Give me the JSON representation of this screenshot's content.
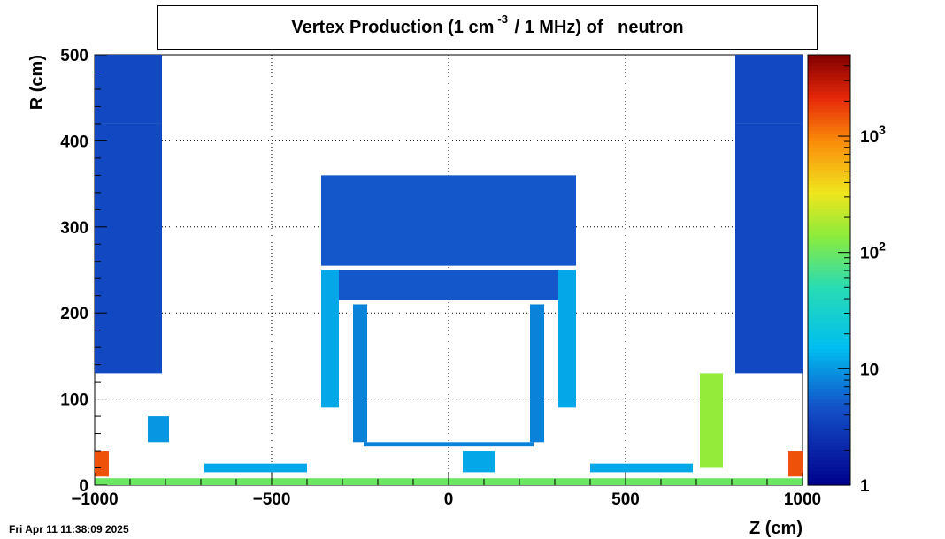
{
  "chart_data": {
    "type": "heatmap",
    "title_pre": "Vertex Production (1 cm",
    "title_sup": "-3",
    "title_post": " / 1 MHz) of   neutron",
    "xlabel": "Z (cm)",
    "ylabel": "R (cm)",
    "xlim": [
      -1000,
      1000
    ],
    "ylim": [
      0,
      500
    ],
    "x_ticks": [
      -1000,
      -500,
      0,
      500,
      1000
    ],
    "x_tick_labels": [
      "−1000",
      "−500",
      "0",
      "500",
      "1000"
    ],
    "y_ticks": [
      0,
      100,
      200,
      300,
      400,
      500
    ],
    "y_tick_labels": [
      "0",
      "100",
      "200",
      "300",
      "400",
      "500"
    ],
    "grid": true,
    "colorbar": {
      "scale": "log",
      "range": [
        1,
        5000
      ],
      "ticks": [
        1,
        10,
        100,
        1000
      ],
      "tick_base": [
        "1",
        "10",
        "10",
        "10"
      ],
      "tick_exp": [
        "",
        "",
        "2",
        "3"
      ]
    },
    "colors": {
      "low": "#1a3cb0",
      "mid": "#16c3e6",
      "high": "#e5e020",
      "max": "#8b0000"
    },
    "regions": [
      {
        "z": [
          -1000,
          -810
        ],
        "r": [
          130,
          420
        ],
        "level": 4
      },
      {
        "z": [
          -1000,
          -810
        ],
        "r": [
          420,
          500
        ],
        "level": 4
      },
      {
        "z": [
          810,
          1000
        ],
        "r": [
          130,
          420
        ],
        "level": 4
      },
      {
        "z": [
          810,
          1000
        ],
        "r": [
          420,
          500
        ],
        "level": 4
      },
      {
        "z": [
          -360,
          360
        ],
        "r": [
          255,
          360
        ],
        "level": 5
      },
      {
        "z": [
          -310,
          310
        ],
        "r": [
          215,
          250
        ],
        "level": 5
      },
      {
        "z": [
          -360,
          -310
        ],
        "r": [
          90,
          250
        ],
        "level": 12
      },
      {
        "z": [
          310,
          360
        ],
        "r": [
          90,
          250
        ],
        "level": 12
      },
      {
        "z": [
          -270,
          -230
        ],
        "r": [
          50,
          210
        ],
        "level": 8
      },
      {
        "z": [
          230,
          270
        ],
        "r": [
          50,
          210
        ],
        "level": 8
      },
      {
        "z": [
          -850,
          -790
        ],
        "r": [
          50,
          80
        ],
        "level": 10
      },
      {
        "z": [
          710,
          775
        ],
        "r": [
          20,
          130
        ],
        "level": 150
      },
      {
        "z": [
          -1000,
          -960
        ],
        "r": [
          10,
          40
        ],
        "level": 1500
      },
      {
        "z": [
          960,
          1000
        ],
        "r": [
          10,
          40
        ],
        "level": 1500
      },
      {
        "z": [
          -1000,
          1000
        ],
        "r": [
          0,
          8
        ],
        "level": 100
      },
      {
        "z": [
          -690,
          -400
        ],
        "r": [
          15,
          25
        ],
        "level": 12
      },
      {
        "z": [
          400,
          690
        ],
        "r": [
          15,
          25
        ],
        "level": 12
      },
      {
        "z": [
          -240,
          240
        ],
        "r": [
          45,
          50
        ],
        "level": 8
      },
      {
        "z": [
          40,
          130
        ],
        "r": [
          15,
          40
        ],
        "level": 12
      }
    ]
  },
  "timestamp": "Fri Apr 11 11:38:09 2025"
}
